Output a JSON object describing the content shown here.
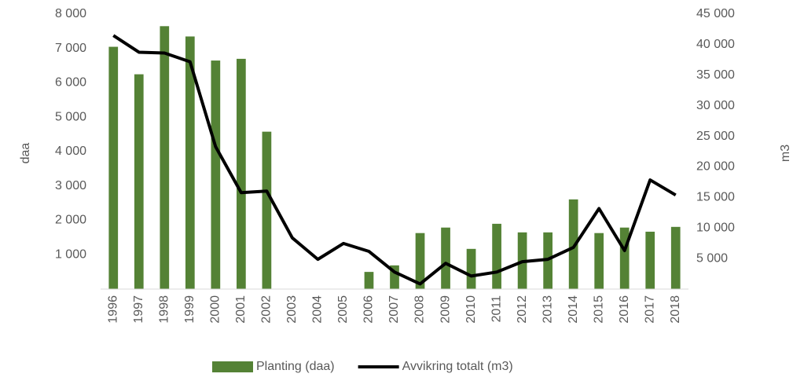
{
  "chart_data": {
    "type": "bar",
    "categories": [
      "1996",
      "1997",
      "1998",
      "1999",
      "2000",
      "2001",
      "2002",
      "2003",
      "2004",
      "2005",
      "2006",
      "2007",
      "2008",
      "2009",
      "2010",
      "2011",
      "2012",
      "2013",
      "2014",
      "2015",
      "2016",
      "2017",
      "2018"
    ],
    "series": [
      {
        "name": "Planting (daa)",
        "type": "bar",
        "axis": "y",
        "color": "#548235",
        "values": [
          7050,
          6250,
          7650,
          7350,
          6650,
          6700,
          4580,
          0,
          0,
          10,
          500,
          690,
          1630,
          1790,
          1170,
          1900,
          1650,
          1650,
          2610,
          1630,
          1790,
          1670,
          1810
        ]
      },
      {
        "name": "Avvikring totalt (m3)",
        "type": "line",
        "axis": "y2",
        "color": "#000000",
        "values": [
          41500,
          38770,
          38640,
          37200,
          23300,
          15780,
          16040,
          8380,
          4870,
          7470,
          6170,
          2790,
          840,
          4220,
          2140,
          2790,
          4480,
          4870,
          6820,
          13180,
          6300,
          17860,
          15390
        ]
      }
    ],
    "ylabel": "daa",
    "y2label": "m3",
    "ylim": [
      0,
      8000
    ],
    "yticks": [
      {
        "value": 1000,
        "label": "1 000"
      },
      {
        "value": 2000,
        "label": "2 000"
      },
      {
        "value": 3000,
        "label": "3 000"
      },
      {
        "value": 4000,
        "label": "4 000"
      },
      {
        "value": 5000,
        "label": "5 000"
      },
      {
        "value": 6000,
        "label": "6 000"
      },
      {
        "value": 7000,
        "label": "7 000"
      },
      {
        "value": 8000,
        "label": "8 000"
      }
    ],
    "y2lim": [
      0,
      45000
    ],
    "y2ticks": [
      {
        "value": 5000,
        "label": "5 000"
      },
      {
        "value": 10000,
        "label": "10 000"
      },
      {
        "value": 15000,
        "label": "15 000"
      },
      {
        "value": 20000,
        "label": "20 000"
      },
      {
        "value": 25000,
        "label": "25 000"
      },
      {
        "value": 30000,
        "label": "30 000"
      },
      {
        "value": 35000,
        "label": "35 000"
      },
      {
        "value": 40000,
        "label": "40 000"
      },
      {
        "value": 45000,
        "label": "45 000"
      }
    ],
    "legend": "bottom"
  }
}
